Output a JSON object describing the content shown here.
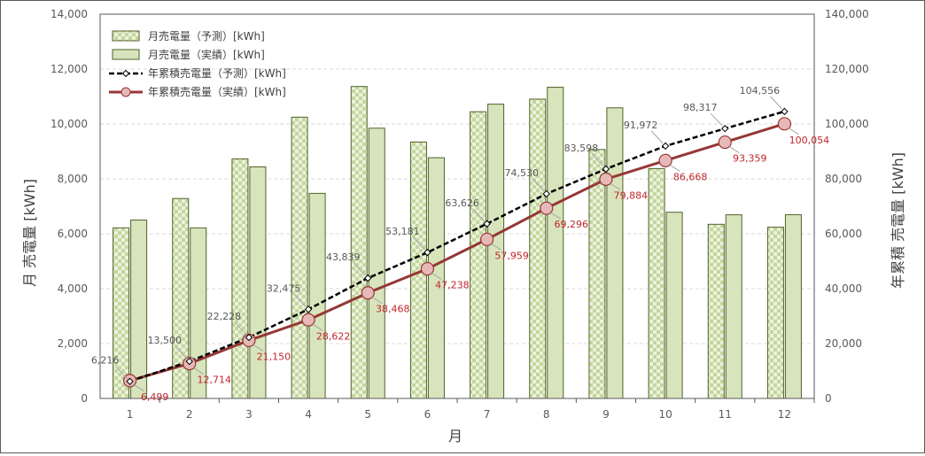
{
  "chart_data": {
    "type": "bar",
    "categories": [
      "1",
      "2",
      "3",
      "4",
      "5",
      "6",
      "7",
      "8",
      "9",
      "10",
      "11",
      "12"
    ],
    "xlabel": "月",
    "ylabel": "月 売電量 [kWh]",
    "y2label": "年累積 売電量 [kWh]",
    "ylim": [
      0,
      14000
    ],
    "y2lim": [
      0,
      140000
    ],
    "yticks": [
      "0",
      "2,000",
      "4,000",
      "6,000",
      "8,000",
      "10,000",
      "12,000",
      "14,000"
    ],
    "y2ticks": [
      "0",
      "20,000",
      "40,000",
      "60,000",
      "80,000",
      "100,000",
      "120,000",
      "140,000"
    ],
    "grid": true,
    "legend_position": "top-left",
    "series": [
      {
        "name": "月売電量（予測）[kWh]",
        "type": "bar",
        "axis": "left",
        "pattern": "checker",
        "values": [
          6216,
          7284,
          8728,
          10247,
          11364,
          9342,
          10445,
          10904,
          9068,
          8374,
          6345,
          6239
        ]
      },
      {
        "name": "月売電量（実績）[kWh]",
        "type": "bar",
        "axis": "left",
        "values": [
          6499,
          6215,
          8436,
          7472,
          9846,
          8770,
          10721,
          11337,
          10588,
          6784,
          6691,
          6695
        ]
      },
      {
        "name": "年累積売電量（予測）[kWh]",
        "type": "line",
        "axis": "right",
        "style": "dashed",
        "values": [
          6216,
          13500,
          22228,
          32475,
          43839,
          53181,
          63626,
          74530,
          83598,
          91972,
          98317,
          104556
        ],
        "labels": [
          "6,216",
          "13,500",
          "22,228",
          "32,475",
          "43,839",
          "53,181",
          "63,626",
          "74,530",
          "83,598",
          "91,972",
          "98,317",
          "104,556"
        ]
      },
      {
        "name": "年累積売電量（実績）[kWh]",
        "type": "line",
        "axis": "right",
        "style": "solid",
        "values": [
          6499,
          12714,
          21150,
          28622,
          38468,
          47238,
          57959,
          69296,
          79884,
          86668,
          93359,
          100054
        ],
        "labels": [
          "6,499",
          "12,714",
          "21,150",
          "28,622",
          "38,468",
          "47,238",
          "57,959",
          "69,296",
          "79,884",
          "86,668",
          "93,359",
          "100,054"
        ]
      }
    ]
  },
  "colors": {
    "bar_fill": "#d8e4bc",
    "bar_border": "#4f6228",
    "checker_light": "#ebf1de",
    "checker_dark": "#c4d79b",
    "predicted_line": "#000000",
    "actual_line": "#953735",
    "actual_marker_fill": "#e6b9b8",
    "actual_label": "#c0272d",
    "predicted_label": "#595959",
    "grid": "#d9d9d9",
    "axis": "#595959"
  }
}
